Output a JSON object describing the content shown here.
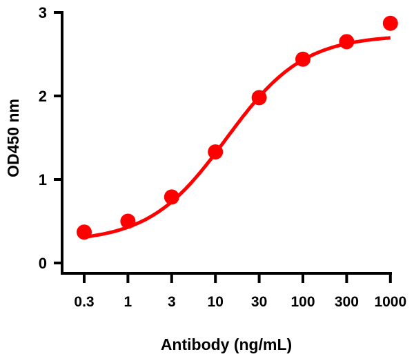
{
  "chart_data": {
    "type": "scatter",
    "title": "",
    "xlabel": "Antibody (ng/mL)",
    "ylabel": "OD450 nm",
    "x_scale": "log",
    "x_ticks": [
      "0.3",
      "1",
      "3",
      "10",
      "30",
      "100",
      "300",
      "1000"
    ],
    "y_ticks": [
      "0",
      "1",
      "2",
      "3"
    ],
    "ylim": [
      0,
      3
    ],
    "grid": false,
    "legend": "none",
    "series": [
      {
        "x": [
          0.3,
          1,
          3,
          10,
          30,
          100,
          300,
          1000
        ],
        "y": [
          0.37,
          0.5,
          0.79,
          1.33,
          1.98,
          2.44,
          2.65,
          2.87
        ],
        "color": "#ff0000",
        "fit": "sigmoidal"
      }
    ]
  }
}
